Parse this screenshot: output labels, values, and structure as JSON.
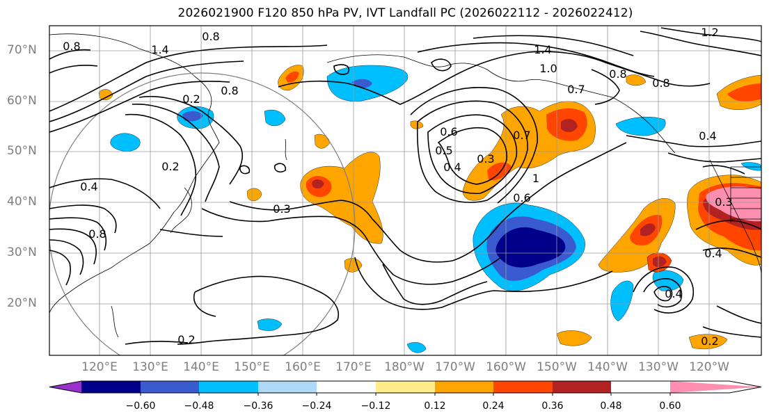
{
  "title": "2026021900 F120 850 hPa PV, IVT Landfall PC (2026022112 - 2026022412)",
  "lat_labels": [
    "70°N",
    "60°N",
    "50°N",
    "40°N",
    "30°N",
    "20°N"
  ],
  "lon_labels": [
    "120°E",
    "130°E",
    "140°E",
    "150°E",
    "160°E",
    "170°E",
    "180°W",
    "170°W",
    "160°W",
    "150°W",
    "140°W",
    "130°W",
    "120°W"
  ],
  "colorbar": {
    "ticks": [
      "−0.60",
      "−0.48",
      "−0.36",
      "−0.24",
      "−0.12",
      "0.12",
      "0.24",
      "0.36",
      "0.48",
      "0.60"
    ],
    "colors": [
      "#9932cc",
      "#00008b",
      "#3a5bd0",
      "#00bfff",
      "#add8f6",
      "#ffffff",
      "#ffec8b",
      "#ffa500",
      "#ff4500",
      "#b22222",
      "#ff8fb0"
    ]
  },
  "contour_labels": [
    "0.8",
    "0.8",
    "1.4",
    "0.8",
    "1.4",
    "1.2",
    "1.0",
    "0.8",
    "0.7",
    "0.8",
    "0.2",
    "0.4",
    "0.2",
    "0.3",
    "0.6",
    "0.5",
    "0.4",
    "0.3",
    "0.7",
    "1",
    "0.6",
    "0.4",
    "0.8",
    "0.3",
    "0.4",
    "0.4",
    "0.2",
    "0.2"
  ],
  "legend_colors": {
    "neg_strong": "#00008b",
    "neg_mid": "#3a5bd0",
    "neg_light": "#00bfff",
    "pos_light": "#ffa500",
    "pos_mid": "#ff4500",
    "pos_strong": "#b22222",
    "pos_max": "#ff8fb0"
  }
}
